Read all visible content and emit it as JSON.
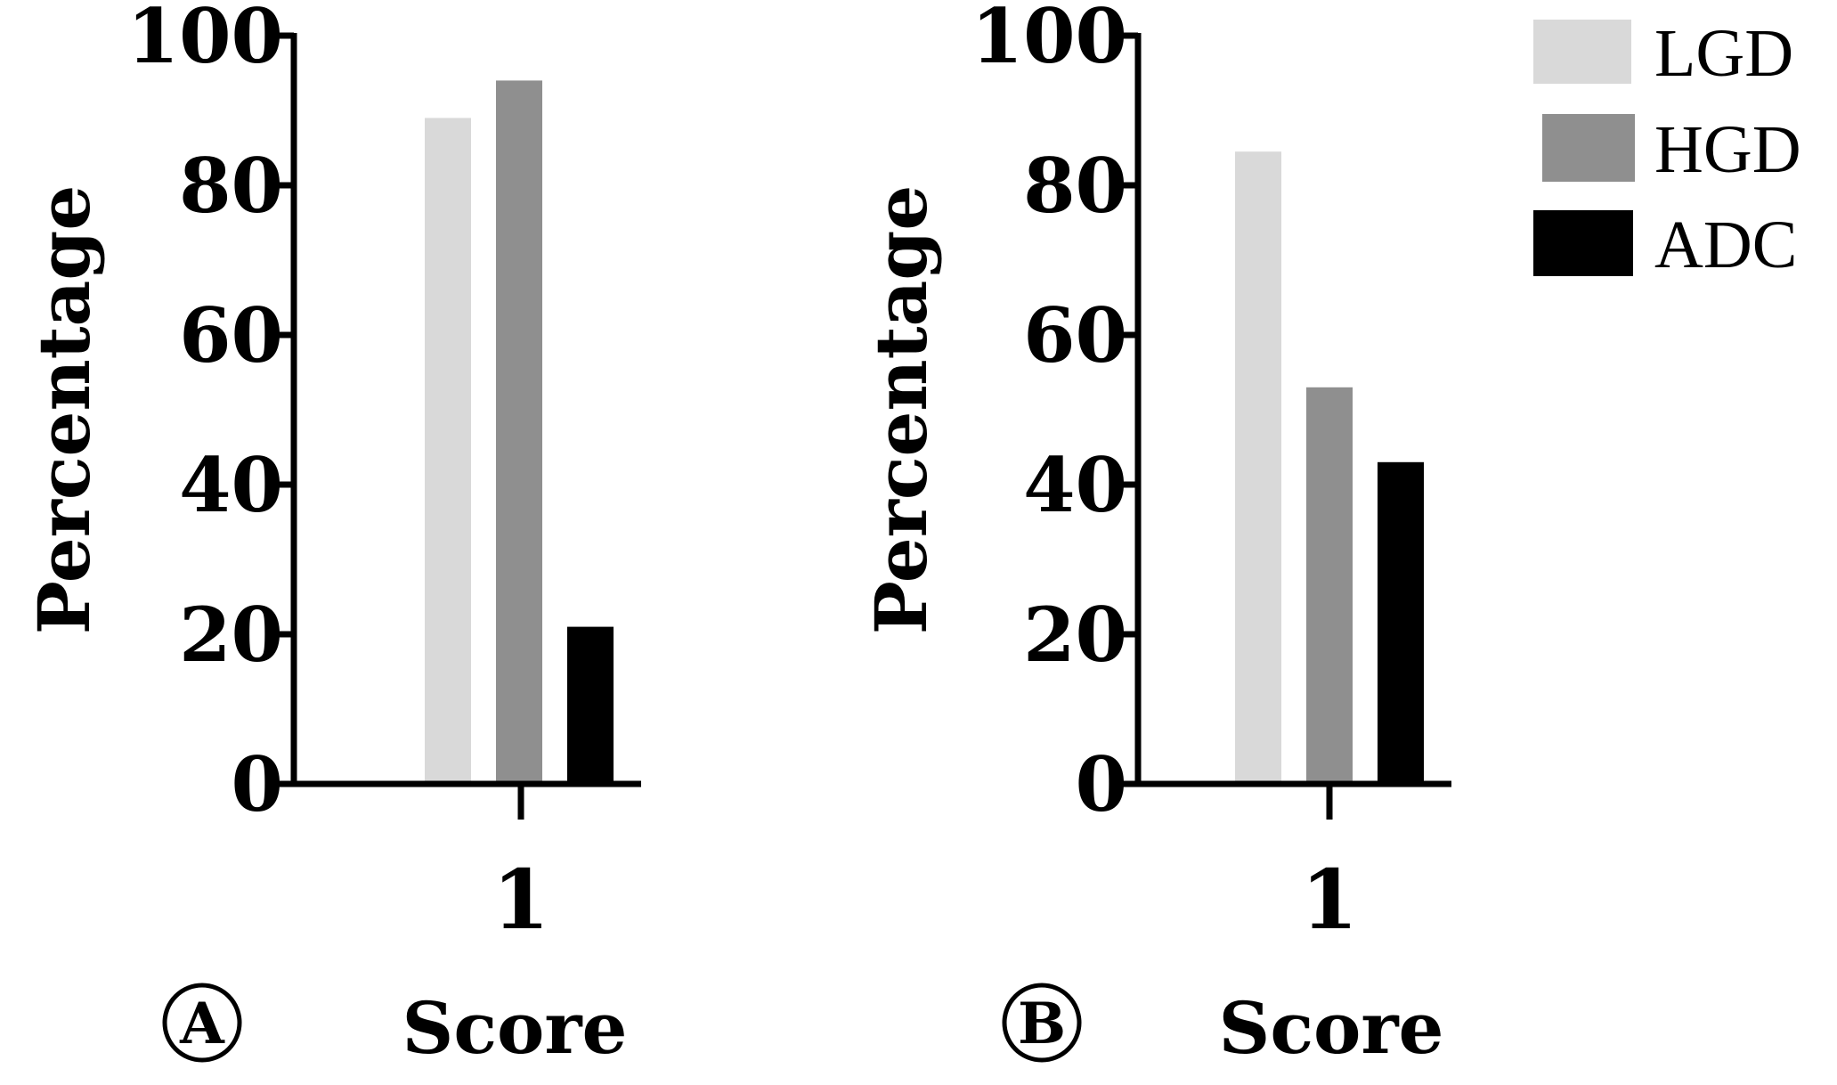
{
  "chart_data": [
    {
      "type": "bar",
      "panel_label": "A",
      "categories": [
        "1"
      ],
      "series": [
        {
          "name": "LGD",
          "values": [
            89
          ]
        },
        {
          "name": "HGD",
          "values": [
            94
          ]
        },
        {
          "name": "ADC",
          "values": [
            21
          ]
        }
      ],
      "xlabel": "Score",
      "ylabel": "Percentage",
      "ylim": [
        0,
        100
      ],
      "yticks": [
        "0",
        "20",
        "40",
        "60",
        "80",
        "100"
      ],
      "grid": false
    },
    {
      "type": "bar",
      "panel_label": "B",
      "categories": [
        "1"
      ],
      "series": [
        {
          "name": "LGD",
          "values": [
            84.5
          ]
        },
        {
          "name": "HGD",
          "values": [
            53
          ]
        },
        {
          "name": "ADC",
          "values": [
            43
          ]
        }
      ],
      "xlabel": "Score",
      "ylabel": "Percentage",
      "ylim": [
        0,
        100
      ],
      "yticks": [
        "0",
        "20",
        "40",
        "60",
        "80",
        "100"
      ],
      "grid": false
    }
  ],
  "legend": {
    "placement": "top-right",
    "items": [
      {
        "label": "LGD",
        "color": "#d9d9d9"
      },
      {
        "label": "HGD",
        "color": "#8f8f8f"
      },
      {
        "label": "ADC",
        "color": "#000000"
      }
    ]
  },
  "colors": {
    "LGD": "#d9d9d9",
    "HGD": "#8f8f8f",
    "ADC": "#000000",
    "axis": "#000000"
  }
}
